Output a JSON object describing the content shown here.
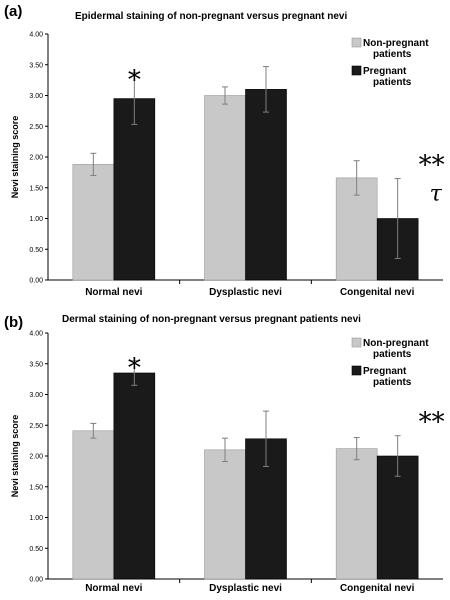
{
  "colors": {
    "non_pregnant": "#c8c8c8",
    "pregnant": "#1a1a1a",
    "error_bar": "#7f7f7f",
    "axis": "#000000"
  },
  "chart_data": [
    {
      "type": "bar",
      "panel": "(a)",
      "title": "Epidermal staining of non-pregnant versus pregnant nevi",
      "ylabel": "Nevi staining score",
      "ylim": [
        0,
        4
      ],
      "ytick_labels": [
        "0.00",
        "0.50",
        "1.00",
        "1.50",
        "2.00",
        "2.50",
        "3.00",
        "3.50",
        "4.00"
      ],
      "categories": [
        "Normal nevi",
        "Dysplastic nevi",
        "Congenital nevi"
      ],
      "legend": {
        "position": "top-right",
        "entries": [
          [
            "Non-pregnant",
            "patients"
          ],
          [
            "Pregnant",
            "patients"
          ]
        ]
      },
      "series": [
        {
          "name": "Non-pregnant patients",
          "values": [
            1.88,
            3.0,
            1.66
          ],
          "errors": [
            0.18,
            0.14,
            0.28
          ]
        },
        {
          "name": "Pregnant patients",
          "values": [
            2.95,
            3.1,
            1.0
          ],
          "errors": [
            0.42,
            0.37,
            0.65
          ]
        }
      ],
      "annotations": [
        {
          "text": "*",
          "category": 0,
          "series": 1
        },
        {
          "text": "**",
          "category": 2,
          "series": 1
        },
        {
          "text": "τ",
          "category": 2,
          "series": 1
        }
      ]
    },
    {
      "type": "bar",
      "panel": "(b)",
      "title": "Dermal staining of non-pregnant versus pregnant patients nevi",
      "ylabel": "Nevi staining score",
      "ylim": [
        0,
        4
      ],
      "ytick_labels": [
        "0.00",
        "0.50",
        "1.00",
        "1.50",
        "2.00",
        "2.50",
        "3.00",
        "3.50",
        "4.00"
      ],
      "categories": [
        "Normal nevi",
        "Dysplastic nevi",
        "Congenital nevi"
      ],
      "legend": {
        "position": "top-right",
        "entries": [
          [
            "Non-pregnant",
            "patients"
          ],
          [
            "Pregnant",
            "patients"
          ]
        ]
      },
      "series": [
        {
          "name": "Non-pregnant patients",
          "values": [
            2.41,
            2.1,
            2.12
          ],
          "errors": [
            0.12,
            0.19,
            0.18
          ]
        },
        {
          "name": "Pregnant patients",
          "values": [
            3.35,
            2.28,
            2.0
          ],
          "errors": [
            0.2,
            0.45,
            0.33
          ]
        }
      ],
      "annotations": [
        {
          "text": "*",
          "category": 0,
          "series": 1
        },
        {
          "text": "**",
          "category": 2,
          "series": 1
        }
      ]
    }
  ]
}
